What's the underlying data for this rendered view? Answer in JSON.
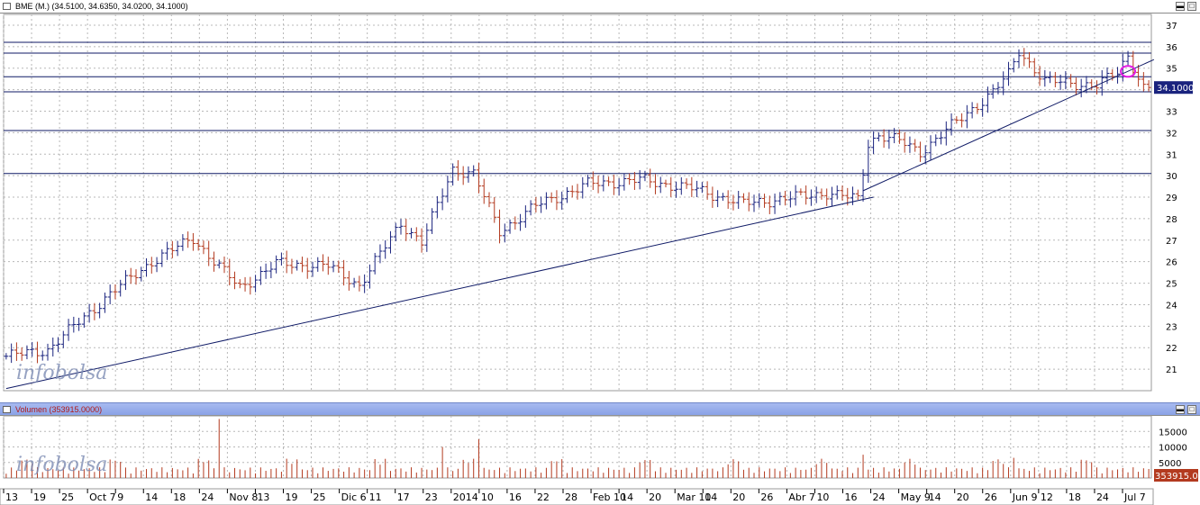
{
  "price_pane": {
    "title": "BME (M.) (34.5100, 34.6350, 34.0200, 34.1000)",
    "watermark": "infobolsa",
    "last_value_label": "34.1000"
  },
  "volume_pane": {
    "title": "Volumen (353915.0000)",
    "watermark": "infobolsa",
    "last_value_label": "353915.000"
  },
  "colors": {
    "up_bar": "#1a237e",
    "down_bar": "#b33a1f",
    "volume_bar": "#b33a1f",
    "trend_line": "#0f1a66",
    "highlight_circle": "#e31ce3",
    "grid": "#b8b8b8"
  },
  "chart_data": [
    {
      "type": "line",
      "title": "BME (M.) (34.5100, 34.6350, 34.0200, 34.1000)",
      "subtype": "ohlc-bars",
      "ylim": [
        20,
        37.5
      ],
      "y_ticks": [
        21,
        22,
        23,
        24,
        25,
        26,
        27,
        28,
        29,
        30,
        31,
        32,
        33,
        34,
        35,
        36,
        37
      ],
      "grid": true,
      "x_tick_labels": [
        "13",
        "19",
        "25",
        "Oct 7",
        "9",
        "14",
        "18",
        "24",
        "Nov 8",
        "13",
        "19",
        "25",
        "Dic 6",
        "11",
        "17",
        "23",
        "2014",
        "10",
        "16",
        "22",
        "28",
        "Feb 10",
        "14",
        "20",
        "Mar 10",
        "14",
        "20",
        "26",
        "Abr 7",
        "10",
        "16",
        "24",
        "May 9",
        "14",
        "20",
        "26",
        "Jun 9",
        "12",
        "18",
        "24",
        "Jul 7"
      ],
      "last_close": 34.1,
      "close_anchors": [
        [
          0,
          21.6
        ],
        [
          8,
          21.9
        ],
        [
          14,
          23.2
        ],
        [
          20,
          24.5
        ],
        [
          28,
          26.0
        ],
        [
          36,
          27.1
        ],
        [
          40,
          26.0
        ],
        [
          45,
          24.8
        ],
        [
          52,
          25.9
        ],
        [
          62,
          25.8
        ],
        [
          68,
          24.9
        ],
        [
          76,
          27.8
        ],
        [
          80,
          26.9
        ],
        [
          86,
          30.3
        ],
        [
          90,
          30.1
        ],
        [
          95,
          27.4
        ],
        [
          102,
          28.6
        ],
        [
          112,
          29.6
        ],
        [
          122,
          29.8
        ],
        [
          132,
          29.4
        ],
        [
          142,
          28.7
        ],
        [
          152,
          29.0
        ],
        [
          158,
          29.2
        ],
        [
          164,
          28.9
        ],
        [
          166,
          31.5
        ],
        [
          168,
          31.9
        ],
        [
          172,
          31.6
        ],
        [
          176,
          31.1
        ],
        [
          180,
          31.9
        ],
        [
          190,
          33.9
        ],
        [
          193,
          34.7
        ],
        [
          195,
          35.8
        ],
        [
          200,
          34.4
        ],
        [
          210,
          34.2
        ],
        [
          214,
          34.8
        ],
        [
          216,
          35.6
        ],
        [
          219,
          34.1
        ]
      ],
      "horizontal_levels": [
        36.2,
        35.7,
        34.6,
        33.9,
        32.1,
        30.1
      ],
      "trend_lines": [
        {
          "from": [
            0,
            20.1
          ],
          "to": [
            167,
            29.0
          ]
        },
        {
          "from": [
            165,
            29.3
          ],
          "to": [
            221,
            35.4
          ]
        }
      ],
      "highlight": {
        "x": 216,
        "y": 34.85
      }
    },
    {
      "type": "bar",
      "title": "Volumen (353915.0000)",
      "ylim": [
        0,
        20000
      ],
      "y_ticks": [
        5000,
        10000,
        15000
      ],
      "last_value": 353915.0,
      "spikes": [
        {
          "x": 41,
          "value": 19000
        },
        {
          "x": 84,
          "value": 10000
        },
        {
          "x": 91,
          "value": 12500
        },
        {
          "x": 165,
          "value": 7500
        },
        {
          "x": 194,
          "value": 6500
        }
      ],
      "base_value": 2300
    }
  ]
}
